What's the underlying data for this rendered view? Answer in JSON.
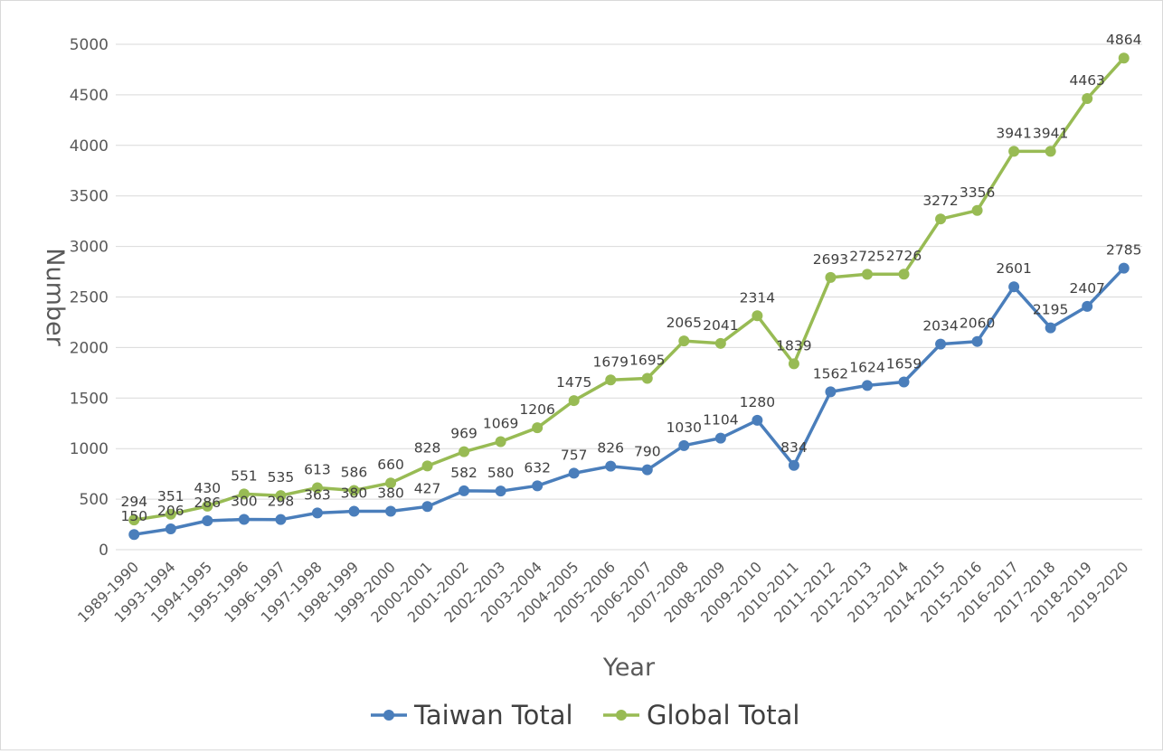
{
  "chart_data": {
    "type": "line",
    "title": "",
    "xlabel": "Year",
    "ylabel": "Number",
    "ylim": [
      0,
      5000
    ],
    "yticks": [
      0,
      500,
      1000,
      1500,
      2000,
      2500,
      3000,
      3500,
      4000,
      4500,
      5000
    ],
    "grid": true,
    "legend_position": "bottom",
    "categories": [
      "1989-1990",
      "1993-1994",
      "1994-1995",
      "1995-1996",
      "1996-1997",
      "1997-1998",
      "1998-1999",
      "1999-2000",
      "2000-2001",
      "2001-2002",
      "2002-2003",
      "2003-2004",
      "2004-2005",
      "2005-2006",
      "2006-2007",
      "2007-2008",
      "2008-2009",
      "2009-2010",
      "2010-2011",
      "2011-2012",
      "2012-2013",
      "2013-2014",
      "2014-2015",
      "2015-2016",
      "2016-2017",
      "2017-2018",
      "2018-2019",
      "2019-2020"
    ],
    "series": [
      {
        "name": "Taiwan Total",
        "color": "#4a7ebb",
        "values": [
          150,
          206,
          286,
          300,
          298,
          363,
          380,
          380,
          427,
          582,
          580,
          632,
          757,
          826,
          790,
          1030,
          1104,
          1280,
          834,
          1562,
          1624,
          1659,
          2034,
          2060,
          2601,
          2195,
          2407,
          2785
        ]
      },
      {
        "name": "Global Total",
        "color": "#98bb54",
        "values": [
          294,
          351,
          430,
          551,
          535,
          613,
          586,
          660,
          828,
          969,
          1069,
          1206,
          1475,
          1679,
          1695,
          2065,
          2041,
          2314,
          1839,
          2693,
          2725,
          2726,
          3272,
          3356,
          3941,
          3941,
          4463,
          4864
        ]
      }
    ]
  }
}
